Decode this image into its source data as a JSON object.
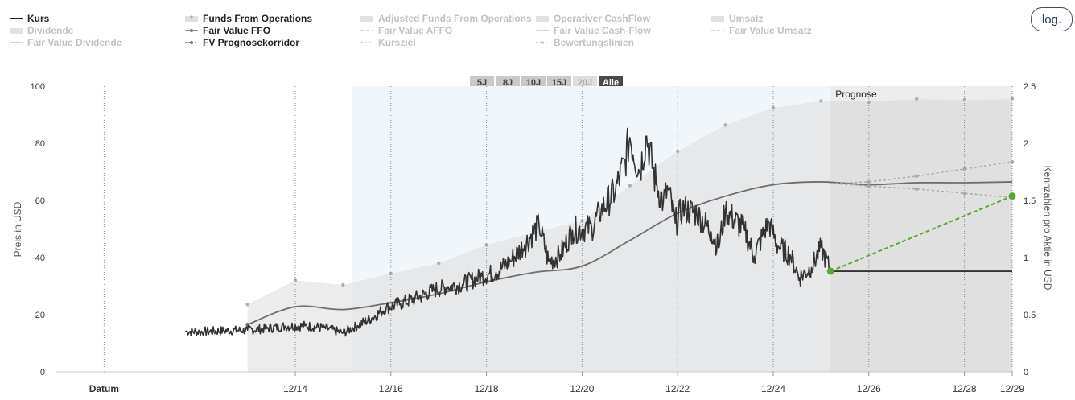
{
  "legend": {
    "items": [
      {
        "label": "Kurs",
        "active": true,
        "style": "solid-dark"
      },
      {
        "label": "Dividende",
        "active": false,
        "style": "area"
      },
      {
        "label": "Fair Value Dividende",
        "active": false,
        "style": "solid-light"
      },
      {
        "label": "Funds From Operations",
        "active": true,
        "style": "area-dots"
      },
      {
        "label": "Fair Value FFO",
        "active": true,
        "style": "solid-mid"
      },
      {
        "label": "FV Prognosekorridor",
        "active": true,
        "style": "dotted"
      },
      {
        "label": "Adjusted Funds From Operations",
        "active": false,
        "style": "area"
      },
      {
        "label": "Fair Value AFFO",
        "active": false,
        "style": "dash"
      },
      {
        "label": "Kursziel",
        "active": false,
        "style": "dashed"
      },
      {
        "label": "Operativer CashFlow",
        "active": false,
        "style": "area"
      },
      {
        "label": "Fair Value Cash-Flow",
        "active": false,
        "style": "solid-light"
      },
      {
        "label": "Bewertungslinien",
        "active": false,
        "style": "dotted"
      },
      {
        "label": "Umsatz",
        "active": false,
        "style": "area"
      },
      {
        "label": "Fair Value Umsatz",
        "active": false,
        "style": "dash"
      }
    ]
  },
  "log_button_label": "log.",
  "range_buttons": [
    {
      "label": "5J",
      "state": "normal"
    },
    {
      "label": "8J",
      "state": "normal"
    },
    {
      "label": "10J",
      "state": "normal"
    },
    {
      "label": "15J",
      "state": "normal"
    },
    {
      "label": "20J",
      "state": "disabled"
    },
    {
      "label": "Alle",
      "state": "active"
    }
  ],
  "forecast_label": "Prognose",
  "colors": {
    "price": "#333333",
    "fair_value": "#6e6e6e",
    "ffo_area": "#e8e8e8",
    "history_band": "#f1f6fb",
    "forecast_bg": "#e5e5e5",
    "target_green": "#5aa832",
    "legend_active": "#222222",
    "legend_inactive": "#c2c2c2"
  },
  "chart_data": {
    "type": "line",
    "xlabel": "Datum",
    "x_ticks": [
      "12/14",
      "12/16",
      "12/18",
      "12/20",
      "12/22",
      "12/24",
      "12/26",
      "12/28",
      "12/29"
    ],
    "y_left": {
      "label": "Preis in USD",
      "ticks": [
        0,
        20,
        40,
        60,
        80,
        100
      ],
      "range": [
        0,
        100
      ]
    },
    "y_right": {
      "label": "Kennzahlen pro Aktie in USD",
      "ticks": [
        "0",
        "0.5",
        "1",
        "1.5",
        "2",
        "2.5"
      ],
      "range": [
        0,
        2.5
      ]
    },
    "forecast_start": 2025.2,
    "series": [
      {
        "name": "Kurs",
        "axis": "left",
        "points": [
          [
            2011.7,
            14.2
          ],
          [
            2012.0,
            14.0
          ],
          [
            2012.5,
            14.4
          ],
          [
            2013.0,
            14.6
          ],
          [
            2013.4,
            15.2
          ],
          [
            2013.8,
            16.0
          ],
          [
            2014.2,
            16.1
          ],
          [
            2014.6,
            15.4
          ],
          [
            2015.0,
            13.6
          ],
          [
            2015.3,
            16.2
          ],
          [
            2015.6,
            18.8
          ],
          [
            2015.9,
            22.4
          ],
          [
            2016.2,
            24.0
          ],
          [
            2016.5,
            25.6
          ],
          [
            2016.9,
            28.6
          ],
          [
            2017.2,
            29.8
          ],
          [
            2017.5,
            30.6
          ],
          [
            2017.9,
            33.5
          ],
          [
            2018.2,
            34.8
          ],
          [
            2018.5,
            38.8
          ],
          [
            2018.8,
            44.5
          ],
          [
            2019.1,
            51.5
          ],
          [
            2019.3,
            38.5
          ],
          [
            2019.55,
            41.0
          ],
          [
            2019.8,
            49.5
          ],
          [
            2020.2,
            50.5
          ],
          [
            2020.4,
            56.5
          ],
          [
            2020.7,
            63.5
          ],
          [
            2020.9,
            74.0
          ],
          [
            2021.0,
            82.0
          ],
          [
            2021.2,
            70.0
          ],
          [
            2021.35,
            82.5
          ],
          [
            2021.55,
            65.5
          ],
          [
            2021.7,
            59.5
          ],
          [
            2021.8,
            64.0
          ],
          [
            2021.95,
            52.0
          ],
          [
            2022.1,
            57.0
          ],
          [
            2022.4,
            55.5
          ],
          [
            2022.7,
            49.0
          ],
          [
            2022.85,
            43.5
          ],
          [
            2023.0,
            56.5
          ],
          [
            2023.4,
            49.5
          ],
          [
            2023.6,
            40.5
          ],
          [
            2023.9,
            52.5
          ],
          [
            2024.1,
            44.0
          ],
          [
            2024.35,
            41.0
          ],
          [
            2024.55,
            33.0
          ],
          [
            2024.8,
            36.5
          ],
          [
            2025.0,
            43.5
          ],
          [
            2025.2,
            35.2
          ]
        ]
      },
      {
        "name": "Funds From Operations",
        "axis": "right",
        "points": [
          [
            2013.0,
            0.59
          ],
          [
            2014.0,
            0.8
          ],
          [
            2015.0,
            0.76
          ],
          [
            2016.0,
            0.86
          ],
          [
            2017.0,
            0.95
          ],
          [
            2018.0,
            1.11
          ],
          [
            2019.0,
            1.22
          ],
          [
            2020.0,
            1.32
          ],
          [
            2021.0,
            1.63
          ],
          [
            2022.0,
            1.93
          ],
          [
            2023.0,
            2.16
          ],
          [
            2024.0,
            2.31
          ],
          [
            2025.0,
            2.37
          ],
          [
            2026.0,
            2.36
          ],
          [
            2027.0,
            2.39
          ],
          [
            2028.0,
            2.38
          ],
          [
            2029.0,
            2.39
          ]
        ]
      },
      {
        "name": "Fair Value FFO",
        "axis": "left",
        "points": [
          [
            2013.0,
            16.5
          ],
          [
            2014.0,
            22.8
          ],
          [
            2015.0,
            21.8
          ],
          [
            2016.0,
            24.2
          ],
          [
            2017.0,
            27.3
          ],
          [
            2018.0,
            31.5
          ],
          [
            2019.0,
            34.8
          ],
          [
            2020.0,
            37.0
          ],
          [
            2021.0,
            46.0
          ],
          [
            2022.0,
            55.5
          ],
          [
            2023.0,
            61.5
          ],
          [
            2024.0,
            65.5
          ],
          [
            2025.0,
            66.5
          ],
          [
            2026.0,
            65.5
          ],
          [
            2027.0,
            66.2
          ],
          [
            2028.0,
            66.2
          ],
          [
            2029.0,
            66.5
          ]
        ]
      },
      {
        "name": "FV Prognosekorridor",
        "axis": "left",
        "upper": [
          [
            2025.2,
            66.0
          ],
          [
            2026.0,
            66.5
          ],
          [
            2027.0,
            68.5
          ],
          [
            2028.0,
            71.0
          ],
          [
            2029.0,
            73.5
          ]
        ],
        "lower": [
          [
            2025.2,
            66.0
          ],
          [
            2026.0,
            65.0
          ],
          [
            2027.0,
            64.0
          ],
          [
            2028.0,
            62.5
          ],
          [
            2029.0,
            61.0
          ]
        ]
      }
    ],
    "price_target": {
      "from": [
        2025.2,
        35.2
      ],
      "to": [
        2029.0,
        61.5
      ],
      "flat_value": 35.2
    },
    "grid": "vertical-dotted"
  }
}
